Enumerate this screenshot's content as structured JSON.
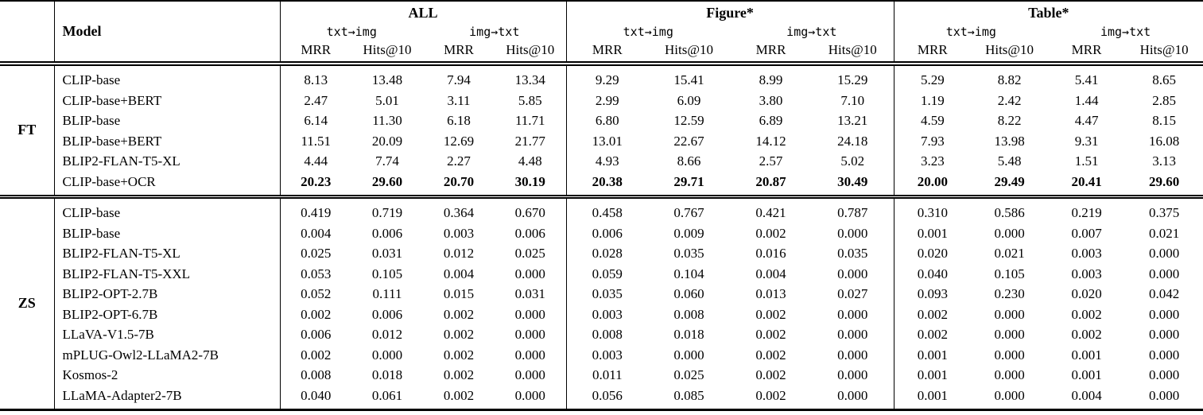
{
  "page": {
    "background": "#ffffff",
    "text_color": "#000000"
  },
  "table": {
    "model_header": "Model",
    "groups": [
      "ALL",
      "Figure*",
      "Table*"
    ],
    "direction_headers": [
      "txt→img",
      "img→txt"
    ],
    "metric_headers": [
      "MRR",
      "Hits@10"
    ],
    "sections": [
      {
        "label": "FT",
        "rows": [
          {
            "model": "CLIP-base",
            "bold_values": false,
            "values": [
              "8.13",
              "13.48",
              "7.94",
              "13.34",
              "9.29",
              "15.41",
              "8.99",
              "15.29",
              "5.29",
              "8.82",
              "5.41",
              "8.65"
            ]
          },
          {
            "model": "CLIP-base+BERT",
            "bold_values": false,
            "values": [
              "2.47",
              "5.01",
              "3.11",
              "5.85",
              "2.99",
              "6.09",
              "3.80",
              "7.10",
              "1.19",
              "2.42",
              "1.44",
              "2.85"
            ]
          },
          {
            "model": "BLIP-base",
            "bold_values": false,
            "values": [
              "6.14",
              "11.30",
              "6.18",
              "11.71",
              "6.80",
              "12.59",
              "6.89",
              "13.21",
              "4.59",
              "8.22",
              "4.47",
              "8.15"
            ]
          },
          {
            "model": "BLIP-base+BERT",
            "bold_values": false,
            "values": [
              "11.51",
              "20.09",
              "12.69",
              "21.77",
              "13.01",
              "22.67",
              "14.12",
              "24.18",
              "7.93",
              "13.98",
              "9.31",
              "16.08"
            ]
          },
          {
            "model": "BLIP2-FLAN-T5-XL",
            "bold_values": false,
            "values": [
              "4.44",
              "7.74",
              "2.27",
              "4.48",
              "4.93",
              "8.66",
              "2.57",
              "5.02",
              "3.23",
              "5.48",
              "1.51",
              "3.13"
            ]
          },
          {
            "model": "CLIP-base+OCR",
            "bold_values": true,
            "values": [
              "20.23",
              "29.60",
              "20.70",
              "30.19",
              "20.38",
              "29.71",
              "20.87",
              "30.49",
              "20.00",
              "29.49",
              "20.41",
              "29.60"
            ]
          }
        ]
      },
      {
        "label": "ZS",
        "rows": [
          {
            "model": "CLIP-base",
            "bold_values": false,
            "values": [
              "0.419",
              "0.719",
              "0.364",
              "0.670",
              "0.458",
              "0.767",
              "0.421",
              "0.787",
              "0.310",
              "0.586",
              "0.219",
              "0.375"
            ]
          },
          {
            "model": "BLIP-base",
            "bold_values": false,
            "values": [
              "0.004",
              "0.006",
              "0.003",
              "0.006",
              "0.006",
              "0.009",
              "0.002",
              "0.000",
              "0.001",
              "0.000",
              "0.007",
              "0.021"
            ]
          },
          {
            "model": "BLIP2-FLAN-T5-XL",
            "bold_values": false,
            "values": [
              "0.025",
              "0.031",
              "0.012",
              "0.025",
              "0.028",
              "0.035",
              "0.016",
              "0.035",
              "0.020",
              "0.021",
              "0.003",
              "0.000"
            ]
          },
          {
            "model": "BLIP2-FLAN-T5-XXL",
            "bold_values": false,
            "values": [
              "0.053",
              "0.105",
              "0.004",
              "0.000",
              "0.059",
              "0.104",
              "0.004",
              "0.000",
              "0.040",
              "0.105",
              "0.003",
              "0.000"
            ]
          },
          {
            "model": "BLIP2-OPT-2.7B",
            "bold_values": false,
            "values": [
              "0.052",
              "0.111",
              "0.015",
              "0.031",
              "0.035",
              "0.060",
              "0.013",
              "0.027",
              "0.093",
              "0.230",
              "0.020",
              "0.042"
            ]
          },
          {
            "model": "BLIP2-OPT-6.7B",
            "bold_values": false,
            "values": [
              "0.002",
              "0.006",
              "0.002",
              "0.000",
              "0.003",
              "0.008",
              "0.002",
              "0.000",
              "0.002",
              "0.000",
              "0.002",
              "0.000"
            ]
          },
          {
            "model": "LLaVA-V1.5-7B",
            "bold_values": false,
            "values": [
              "0.006",
              "0.012",
              "0.002",
              "0.000",
              "0.008",
              "0.018",
              "0.002",
              "0.000",
              "0.002",
              "0.000",
              "0.002",
              "0.000"
            ]
          },
          {
            "model": "mPLUG-Owl2-LLaMA2-7B",
            "bold_values": false,
            "values": [
              "0.002",
              "0.000",
              "0.002",
              "0.000",
              "0.003",
              "0.000",
              "0.002",
              "0.000",
              "0.001",
              "0.000",
              "0.001",
              "0.000"
            ]
          },
          {
            "model": "Kosmos-2",
            "bold_values": false,
            "values": [
              "0.008",
              "0.018",
              "0.002",
              "0.000",
              "0.011",
              "0.025",
              "0.002",
              "0.000",
              "0.001",
              "0.000",
              "0.001",
              "0.000"
            ]
          },
          {
            "model": "LLaMA-Adapter2-7B",
            "bold_values": false,
            "values": [
              "0.040",
              "0.061",
              "0.002",
              "0.000",
              "0.056",
              "0.085",
              "0.002",
              "0.000",
              "0.001",
              "0.000",
              "0.004",
              "0.000"
            ]
          }
        ]
      }
    ]
  }
}
